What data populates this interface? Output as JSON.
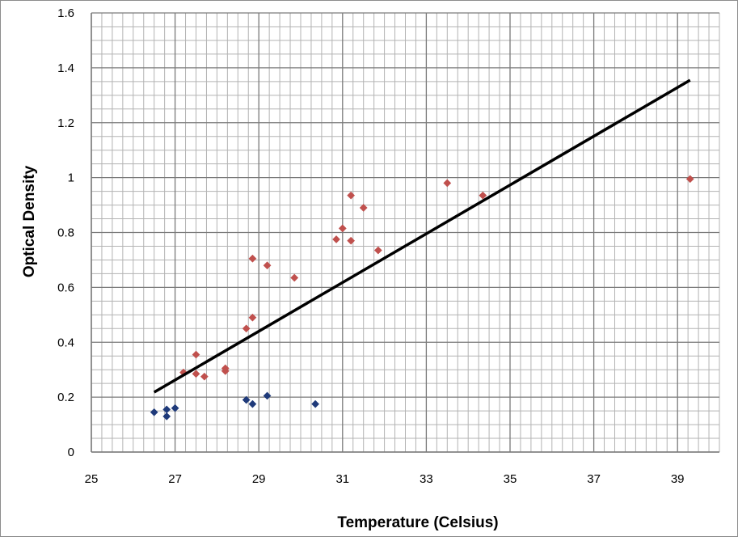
{
  "chart_data": {
    "type": "scatter",
    "title": "",
    "xlabel": "Temperature (Celsius)",
    "ylabel": "Optical Density",
    "xlim": [
      25,
      40
    ],
    "ylim": [
      0,
      1.6
    ],
    "x_ticks": [
      25,
      27,
      29,
      31,
      33,
      35,
      37,
      39
    ],
    "x_tick_labels": [
      "25",
      "27",
      "29",
      "31",
      "33",
      "35",
      "37",
      "39"
    ],
    "y_ticks": [
      0,
      0.2,
      0.4,
      0.6,
      0.8,
      1.0,
      1.2,
      1.4,
      1.6
    ],
    "y_tick_labels": [
      "0",
      "0.2",
      "0.4",
      "0.6",
      "0.8",
      "1",
      "1.2",
      "1.4",
      "1.6"
    ],
    "grid": true,
    "legend": "none",
    "series": [
      {
        "color": "#c0504d",
        "marker": "diamond",
        "points": [
          [
            27.2,
            0.29
          ],
          [
            27.5,
            0.355
          ],
          [
            27.5,
            0.285
          ],
          [
            27.7,
            0.275
          ],
          [
            28.2,
            0.305
          ],
          [
            28.2,
            0.295
          ],
          [
            28.7,
            0.45
          ],
          [
            28.85,
            0.49
          ],
          [
            28.85,
            0.705
          ],
          [
            29.2,
            0.68
          ],
          [
            29.85,
            0.635
          ],
          [
            30.85,
            0.775
          ],
          [
            31.0,
            0.815
          ],
          [
            31.2,
            0.77
          ],
          [
            31.2,
            0.935
          ],
          [
            31.5,
            0.89
          ],
          [
            31.85,
            0.735
          ],
          [
            33.5,
            0.98
          ],
          [
            34.35,
            0.935
          ],
          [
            39.3,
            0.995
          ]
        ]
      },
      {
        "color": "#1f3a7a",
        "marker": "diamond",
        "points": [
          [
            26.5,
            0.145
          ],
          [
            26.8,
            0.13
          ],
          [
            26.8,
            0.155
          ],
          [
            27.0,
            0.16
          ],
          [
            28.7,
            0.19
          ],
          [
            28.85,
            0.175
          ],
          [
            29.2,
            0.205
          ],
          [
            30.35,
            0.175
          ]
        ]
      },
      {
        "type": "line",
        "color": "#000000",
        "x": [
          26.5,
          39.3
        ],
        "y": [
          0.218,
          1.355
        ]
      }
    ]
  }
}
